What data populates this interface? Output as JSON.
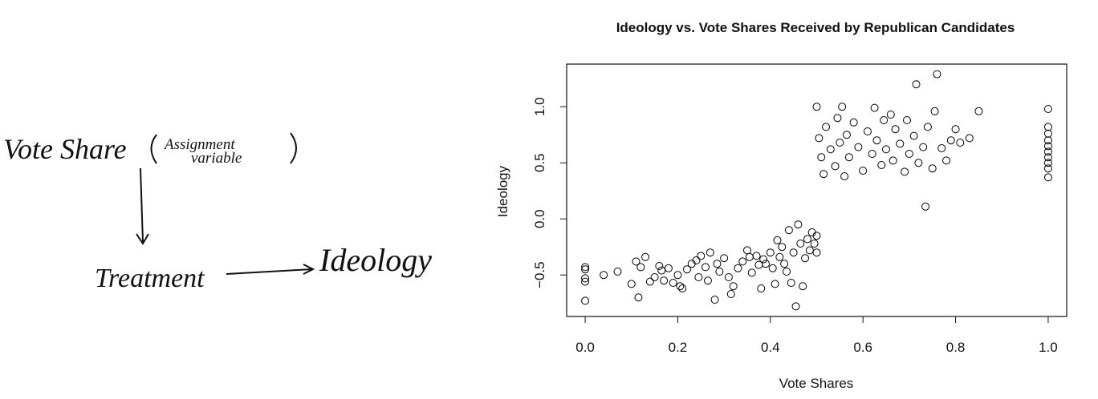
{
  "chart_data": {
    "type": "scatter",
    "title": "Ideology vs. Vote Shares Received by Republican Candidates",
    "x_label": "Vote Shares",
    "y_label": "Ideology",
    "color": "#000000",
    "xlim": [
      -0.04,
      1.04
    ],
    "ylim": [
      -0.87,
      1.38
    ],
    "xticks": [
      {
        "value": 0,
        "label": "0.0"
      },
      {
        "value": 0.2,
        "label": "0.2"
      },
      {
        "value": 0.4,
        "label": "0.4"
      },
      {
        "value": 0.6,
        "label": "0.6"
      },
      {
        "value": 0.8,
        "label": "0.8"
      },
      {
        "value": 1,
        "label": "1.0"
      }
    ],
    "yticks": [
      {
        "value": -0.5,
        "label": "−0.5"
      },
      {
        "value": 0,
        "label": "0.0"
      },
      {
        "value": 0.5,
        "label": "0.5"
      },
      {
        "value": 1,
        "label": "1.0"
      }
    ],
    "x": [
      0,
      0,
      0,
      0,
      0,
      0.04,
      0.07,
      0.1,
      0.11,
      0.115,
      0.12,
      0.13,
      0.14,
      0.15,
      0.16,
      0.165,
      0.17,
      0.18,
      0.19,
      0.2,
      0.205,
      0.21,
      0.22,
      0.23,
      0.24,
      0.245,
      0.25,
      0.26,
      0.265,
      0.27,
      0.28,
      0.285,
      0.29,
      0.3,
      0.31,
      0.315,
      0.32,
      0.33,
      0.34,
      0.35,
      0.355,
      0.36,
      0.37,
      0.375,
      0.38,
      0.385,
      0.39,
      0.4,
      0.405,
      0.41,
      0.415,
      0.42,
      0.425,
      0.43,
      0.435,
      0.44,
      0.445,
      0.45,
      0.455,
      0.46,
      0.465,
      0.47,
      0.475,
      0.48,
      0.485,
      0.49,
      0.495,
      0.5,
      0.5,
      0.5,
      0.505,
      0.51,
      0.515,
      0.52,
      0.53,
      0.54,
      0.545,
      0.55,
      0.555,
      0.56,
      0.565,
      0.57,
      0.58,
      0.59,
      0.6,
      0.61,
      0.62,
      0.625,
      0.63,
      0.64,
      0.645,
      0.65,
      0.66,
      0.665,
      0.67,
      0.68,
      0.69,
      0.695,
      0.7,
      0.71,
      0.715,
      0.72,
      0.73,
      0.735,
      0.74,
      0.75,
      0.755,
      0.76,
      0.77,
      0.78,
      0.79,
      0.8,
      0.81,
      0.83,
      0.85,
      1,
      1,
      1,
      1,
      1,
      1,
      1,
      1,
      1,
      1
    ],
    "values": [
      -0.43,
      -0.45,
      -0.53,
      -0.56,
      -0.73,
      -0.5,
      -0.47,
      -0.58,
      -0.38,
      -0.7,
      -0.43,
      -0.34,
      -0.56,
      -0.52,
      -0.42,
      -0.46,
      -0.55,
      -0.44,
      -0.57,
      -0.5,
      -0.6,
      -0.62,
      -0.45,
      -0.4,
      -0.37,
      -0.52,
      -0.33,
      -0.43,
      -0.55,
      -0.3,
      -0.72,
      -0.4,
      -0.47,
      -0.35,
      -0.52,
      -0.67,
      -0.6,
      -0.44,
      -0.38,
      -0.28,
      -0.34,
      -0.48,
      -0.33,
      -0.41,
      -0.62,
      -0.36,
      -0.4,
      -0.3,
      -0.44,
      -0.58,
      -0.19,
      -0.34,
      -0.25,
      -0.4,
      -0.47,
      -0.1,
      -0.57,
      -0.3,
      -0.78,
      -0.05,
      -0.22,
      -0.6,
      -0.35,
      -0.18,
      -0.28,
      -0.12,
      -0.22,
      -0.3,
      -0.15,
      1.0,
      0.72,
      0.55,
      0.4,
      0.82,
      0.62,
      0.47,
      0.9,
      0.68,
      1.0,
      0.38,
      0.75,
      0.55,
      0.86,
      0.64,
      0.43,
      0.78,
      0.58,
      0.99,
      0.7,
      0.48,
      0.88,
      0.62,
      0.93,
      0.52,
      0.8,
      0.67,
      0.42,
      0.88,
      0.58,
      0.74,
      1.2,
      0.5,
      0.64,
      0.11,
      0.82,
      0.45,
      0.96,
      1.29,
      0.63,
      0.52,
      0.7,
      0.8,
      0.68,
      0.72,
      0.96,
      0.98,
      0.82,
      0.76,
      0.7,
      0.65,
      0.6,
      0.55,
      0.5,
      0.45,
      0.37
    ]
  },
  "diagram": {
    "assignment": "Vote Share",
    "note_line1": "Assignment",
    "note_line2": "variable",
    "treatment": "Treatment",
    "outcome": "Ideology"
  }
}
